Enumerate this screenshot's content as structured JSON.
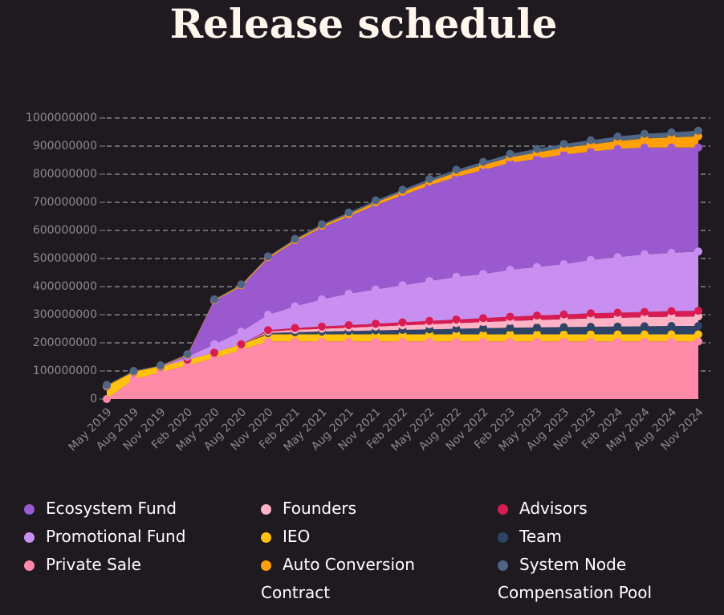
{
  "chart_data": {
    "type": "stacked-area",
    "title": "Release schedule",
    "categories": [
      "May 2019",
      "Aug 2019",
      "Nov 2019",
      "Feb 2020",
      "May 2020",
      "Aug 2020",
      "Nov 2020",
      "Feb 2021",
      "May 2021",
      "Aug 2021",
      "Nov 2021",
      "Feb 2022",
      "May 2022",
      "Aug 2022",
      "Nov 2022",
      "Feb 2023",
      "May 2023",
      "Aug 2023",
      "Nov 2023",
      "Feb 2024",
      "May 2024",
      "Aug 2024",
      "Nov 2024"
    ],
    "series": [
      {
        "name": "Private Sale",
        "color": "#ff8aa8",
        "values": [
          0,
          70000000,
          95000000,
          120000000,
          145000000,
          175000000,
          205000000,
          205000000,
          205000000,
          205000000,
          205000000,
          205000000,
          205000000,
          205000000,
          205000000,
          205000000,
          205000000,
          205000000,
          205000000,
          205000000,
          205000000,
          205000000,
          205000000
        ]
      },
      {
        "name": "IEO",
        "color": "#ffc20e",
        "values": [
          45000000,
          25000000,
          20000000,
          20000000,
          20000000,
          20000000,
          25000000,
          25000000,
          25000000,
          25000000,
          25000000,
          25000000,
          25000000,
          25000000,
          25000000,
          25000000,
          25000000,
          25000000,
          25000000,
          25000000,
          25000000,
          25000000,
          25000000
        ]
      },
      {
        "name": "Team",
        "color": "#2e4466",
        "values": [
          0,
          0,
          0,
          0,
          0,
          0,
          5000000,
          8000000,
          10000000,
          12000000,
          14000000,
          16000000,
          18000000,
          20000000,
          22000000,
          24000000,
          25000000,
          26000000,
          27000000,
          28000000,
          29000000,
          30000000,
          30000000
        ]
      },
      {
        "name": "Founders",
        "color": "#ffb3c6",
        "values": [
          0,
          0,
          0,
          0,
          0,
          0,
          5000000,
          8000000,
          10000000,
          12000000,
          14000000,
          16000000,
          18000000,
          20000000,
          22000000,
          24000000,
          26000000,
          28000000,
          30000000,
          31000000,
          32000000,
          33000000,
          34000000
        ]
      },
      {
        "name": "Advisors",
        "color": "#d81b50",
        "values": [
          0,
          0,
          0,
          0,
          0,
          0,
          5000000,
          7000000,
          8000000,
          9000000,
          10000000,
          11000000,
          12000000,
          13000000,
          14000000,
          15000000,
          16000000,
          17000000,
          18000000,
          18000000,
          19000000,
          20000000,
          20000000
        ]
      },
      {
        "name": "Promotional Fund",
        "color": "#c98ff0",
        "values": [
          0,
          0,
          0,
          10000000,
          30000000,
          45000000,
          55000000,
          77000000,
          97000000,
          112000000,
          122000000,
          132000000,
          142000000,
          152000000,
          157000000,
          167000000,
          173000000,
          179000000,
          190000000,
          198000000,
          205000000,
          207000000,
          211000000
        ]
      },
      {
        "name": "Ecosystem Fund",
        "color": "#9b59d0",
        "values": [
          0,
          0,
          0,
          5000000,
          155000000,
          160000000,
          200000000,
          230000000,
          255000000,
          275000000,
          300000000,
          320000000,
          340000000,
          355000000,
          370000000,
          380000000,
          385000000,
          390000000,
          385000000,
          385000000,
          380000000,
          375000000,
          370000000
        ]
      },
      {
        "name": "Auto Conversion Contract",
        "color": "#ff9f0a",
        "values": [
          3000000,
          3000000,
          3000000,
          3000000,
          3000000,
          5000000,
          5000000,
          6000000,
          7000000,
          8000000,
          10000000,
          12000000,
          14000000,
          16000000,
          18000000,
          20000000,
          22000000,
          24000000,
          26000000,
          28000000,
          32000000,
          36000000,
          40000000
        ]
      },
      {
        "name": "System Node Compensation Pool",
        "color": "#4e6585",
        "values": [
          2000000,
          2000000,
          2000000,
          2000000,
          2000000,
          3000000,
          3000000,
          4000000,
          5000000,
          6000000,
          7000000,
          8000000,
          9000000,
          10000000,
          11000000,
          12000000,
          13000000,
          14000000,
          15000000,
          16000000,
          17000000,
          18000000,
          20000000
        ]
      }
    ],
    "ylim": [
      0,
      1000000000
    ],
    "yticks": [
      0,
      100000000,
      200000000,
      300000000,
      400000000,
      500000000,
      600000000,
      700000000,
      800000000,
      900000000,
      1000000000
    ],
    "grid": true
  }
}
